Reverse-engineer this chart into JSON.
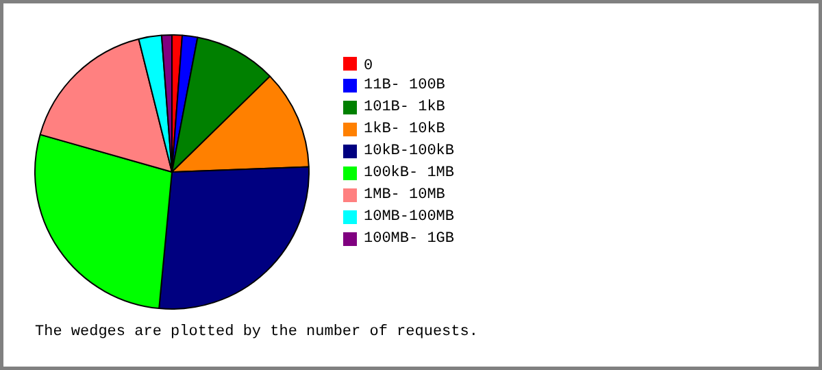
{
  "chart_data": {
    "type": "pie",
    "categories": [
      "0",
      "11B- 100B",
      "101B-  1kB",
      "1kB- 10kB",
      "10kB-100kB",
      "100kB-  1MB",
      "1MB- 10MB",
      "10MB-100MB",
      "100MB-  1GB"
    ],
    "values": [
      1.2,
      1.8,
      9.7,
      11.7,
      27.1,
      27.9,
      16.7,
      2.7,
      1.2
    ],
    "colors": [
      "#ff0000",
      "#0000ff",
      "#008000",
      "#ff8000",
      "#000080",
      "#00ff00",
      "#ff8080",
      "#00ffff",
      "#800080"
    ],
    "legend": "right",
    "annotations": [
      "The wedges are plotted by the number of requests."
    ]
  }
}
